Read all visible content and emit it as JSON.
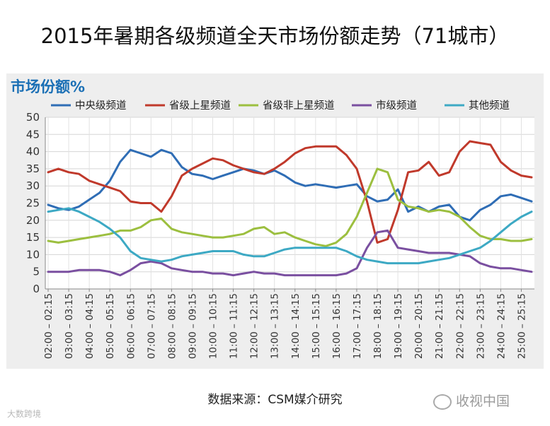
{
  "title": "2015年暑期各级频道全天市场份额走势（71城市）",
  "source": "数据来源：CSM媒介研究",
  "watermark_right": "收视中国",
  "watermark_left": "大数跨境",
  "chart_data": {
    "type": "line",
    "ylabel": "市场份额%",
    "ylim": [
      0,
      50
    ],
    "yticks": [
      0,
      5,
      10,
      15,
      20,
      25,
      30,
      35,
      40,
      45,
      50
    ],
    "grid": true,
    "legend_position": "top",
    "categories": [
      "02:00 - 02:15",
      "02:30 - 02:45",
      "03:00 - 03:15",
      "03:30 - 03:45",
      "04:00 - 04:15",
      "04:30 - 04:45",
      "05:00 - 05:15",
      "05:30 - 05:45",
      "06:00 - 06:15",
      "06:30 - 06:45",
      "07:00 - 07:15",
      "07:30 - 07:45",
      "08:00 - 08:15",
      "08:30 - 08:45",
      "09:00 - 09:15",
      "09:30 - 09:45",
      "10:00 - 10:15",
      "10:30 - 10:45",
      "11:00 - 11:15",
      "11:30 - 11:45",
      "12:00 - 12:15",
      "12:30 - 12:45",
      "13:00 - 13:15",
      "13:30 - 13:45",
      "14:00 - 14:15",
      "14:30 - 14:45",
      "15:00 - 15:15",
      "15:30 - 15:45",
      "16:00 - 16:15",
      "16:30 - 16:45",
      "17:00 - 17:15",
      "17:30 - 17:45",
      "18:00 - 18:15",
      "18:30 - 18:45",
      "19:00 - 19:15",
      "19:30 - 19:45",
      "20:00 - 20:15",
      "20:30 - 20:45",
      "21:00 - 21:15",
      "21:30 - 21:45",
      "22:00 - 22:15",
      "22:30 - 22:45",
      "23:00 - 23:15",
      "23:30 - 23:45",
      "24:00 - 24:15",
      "24:30 - 24:45",
      "25:00 - 25:15",
      "25:30 - 25:45"
    ],
    "tick_labels": [
      "02:00 – 02:15",
      "03:00 – 03:15",
      "04:00 – 04:15",
      "05:00 – 05:15",
      "06:00 – 06:15",
      "07:00 – 07:15",
      "08:00 – 08:15",
      "09:00 – 09:15",
      "10:00 – 10:15",
      "11:00 – 11:15",
      "12:00 – 12:15",
      "13:00 – 13:15",
      "14:00 – 14:15",
      "15:00 – 15:15",
      "16:00 – 16:15",
      "17:00 – 17:15",
      "18:00 – 18:15",
      "19:00 – 19:15",
      "20:00 – 20:15",
      "21:00 – 21:15",
      "22:00 – 22:15",
      "23:00 – 23:15",
      "24:00 – 24:15",
      "25:00 – 25:15"
    ],
    "series": [
      {
        "name": "中央级频道",
        "color": "#2f6db5",
        "values": [
          24.5,
          23.5,
          23.0,
          24.0,
          26.0,
          28.0,
          31.5,
          37.0,
          40.5,
          39.5,
          38.5,
          40.5,
          39.5,
          35.5,
          33.5,
          33.0,
          32.0,
          33.0,
          34.0,
          35.0,
          34.5,
          33.5,
          34.5,
          33.0,
          31.0,
          30.0,
          30.5,
          30.0,
          29.5,
          30.0,
          30.5,
          27.0,
          25.5,
          26.0,
          29.0,
          22.5,
          24.0,
          22.5,
          24.0,
          24.5,
          21.0,
          20.0,
          23.0,
          24.5,
          27.0,
          27.5,
          26.5,
          25.5
        ]
      },
      {
        "name": "省级上星频道",
        "color": "#c0392b",
        "values": [
          34.0,
          35.0,
          34.0,
          33.5,
          31.5,
          30.5,
          29.5,
          28.5,
          25.5,
          25.0,
          25.0,
          22.5,
          27.0,
          33.0,
          35.0,
          36.5,
          38.0,
          37.5,
          36.0,
          35.0,
          34.0,
          33.5,
          35.0,
          37.0,
          39.5,
          41.0,
          41.5,
          41.5,
          41.5,
          39.0,
          35.0,
          25.5,
          13.5,
          14.5,
          23.0,
          34.0,
          34.5,
          37.0,
          33.0,
          34.0,
          40.0,
          43.0,
          42.5,
          42.0,
          37.0,
          34.5,
          33.0,
          32.5
        ]
      },
      {
        "name": "省级非上星频道",
        "color": "#9cbf3f",
        "values": [
          14.0,
          13.5,
          14.0,
          14.5,
          15.0,
          15.5,
          16.0,
          17.0,
          17.0,
          18.0,
          20.0,
          20.5,
          17.5,
          16.5,
          16.0,
          15.5,
          15.0,
          15.0,
          15.5,
          16.0,
          17.5,
          18.0,
          16.0,
          16.5,
          15.0,
          14.0,
          13.0,
          12.5,
          13.5,
          16.0,
          21.0,
          28.0,
          35.0,
          34.0,
          26.0,
          24.0,
          23.5,
          22.5,
          23.0,
          22.5,
          21.0,
          18.0,
          15.5,
          14.5,
          14.5,
          14.0,
          14.0,
          14.5
        ]
      },
      {
        "name": "市级频道",
        "color": "#7a4fa0",
        "values": [
          5.0,
          5.0,
          5.0,
          5.5,
          5.5,
          5.5,
          5.0,
          4.0,
          5.5,
          7.5,
          8.0,
          7.5,
          6.0,
          5.5,
          5.0,
          5.0,
          4.5,
          4.5,
          4.0,
          4.5,
          5.0,
          4.5,
          4.5,
          4.0,
          4.0,
          4.0,
          4.0,
          4.0,
          4.0,
          4.5,
          6.0,
          12.0,
          16.5,
          17.0,
          12.0,
          11.5,
          11.0,
          10.5,
          10.5,
          10.5,
          10.0,
          9.5,
          7.5,
          6.5,
          6.0,
          6.0,
          5.5,
          5.0
        ]
      },
      {
        "name": "其他频道",
        "color": "#3da9c4",
        "values": [
          22.5,
          23.0,
          23.5,
          22.5,
          21.0,
          19.5,
          17.5,
          15.0,
          11.0,
          9.0,
          8.5,
          8.0,
          8.5,
          9.5,
          10.0,
          10.5,
          11.0,
          11.0,
          11.0,
          10.0,
          9.5,
          9.5,
          10.5,
          11.5,
          12.0,
          12.0,
          12.0,
          12.0,
          12.0,
          11.0,
          9.5,
          8.5,
          8.0,
          7.5,
          7.5,
          7.5,
          7.5,
          8.0,
          8.5,
          9.0,
          10.0,
          11.0,
          12.0,
          14.0,
          16.5,
          19.0,
          21.0,
          22.5
        ]
      }
    ]
  }
}
